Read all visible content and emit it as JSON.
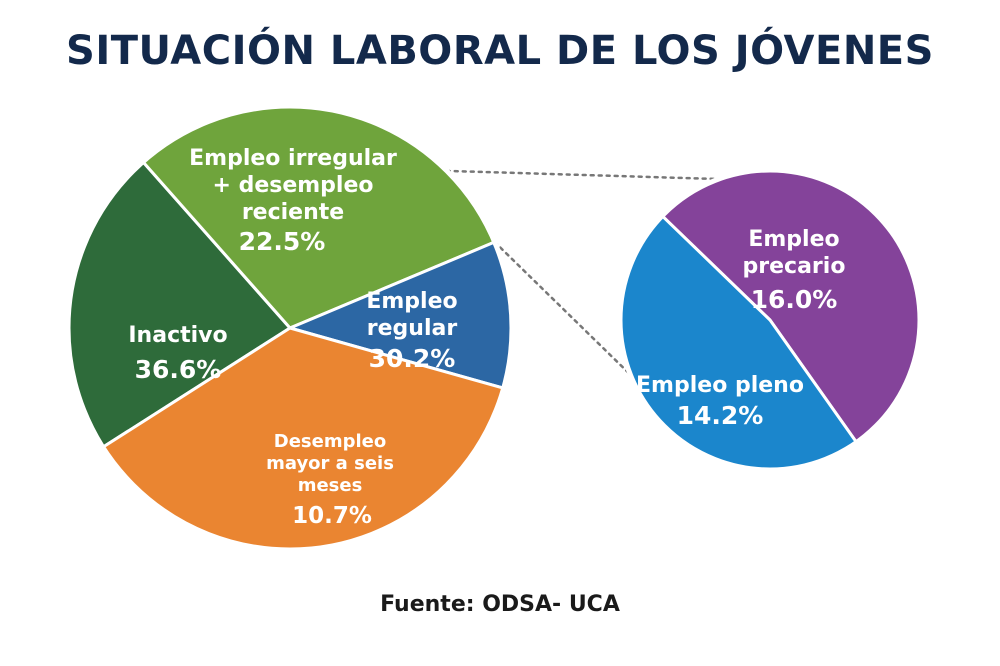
{
  "chart_data": {
    "type": "pie",
    "title": "SITUACIÓN LABORAL DE LOS JÓVENES",
    "source": "Fuente: ODSA- UCA",
    "main_pie": {
      "slices": [
        {
          "label_lines": [
            "Empleo irregular",
            "+ desempleo",
            "reciente"
          ],
          "value": 22.5,
          "value_text": "22.5%",
          "color": "#2e6b3a"
        },
        {
          "label_lines": [
            "Empleo",
            "regular"
          ],
          "value": 30.2,
          "value_text": "30.2%",
          "color": "#6fa43c"
        },
        {
          "label_lines": [
            "Desempleo",
            "mayor a seis",
            "meses"
          ],
          "value": 10.7,
          "value_text": "10.7%",
          "color": "#2c67a4"
        },
        {
          "label_lines": [
            "Inactivo"
          ],
          "value": 36.6,
          "value_text": "36.6%",
          "color": "#ea8531"
        }
      ]
    },
    "breakdown_pie": {
      "of_slice": "Empleo regular",
      "slices": [
        {
          "label_lines": [
            "Empleo",
            "precario"
          ],
          "value": 16.0,
          "value_text": "16.0%",
          "color": "#84439a"
        },
        {
          "label_lines": [
            "Empleo pleno"
          ],
          "value": 14.2,
          "value_text": "14.2%",
          "color": "#1b86cc"
        }
      ]
    },
    "colors": {
      "title": "#13294b",
      "connector": "#777777",
      "border": "#ffffff"
    }
  }
}
